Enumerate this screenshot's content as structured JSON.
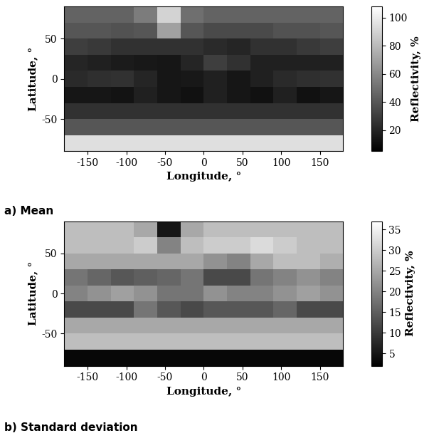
{
  "chart_data": [
    {
      "type": "heatmap",
      "title": "a) Mean",
      "xlabel": "Longitude, °",
      "ylabel": "Latitude, °",
      "xlim": [
        -180,
        180
      ],
      "ylim": [
        -90,
        90
      ],
      "xticks": [
        -150,
        -100,
        -50,
        0,
        50,
        100,
        150
      ],
      "yticks": [
        -50,
        0,
        50
      ],
      "x_edges": [
        -180,
        -150,
        -120,
        -90,
        -60,
        -30,
        0,
        30,
        60,
        90,
        120,
        150,
        180
      ],
      "y_edges": [
        90,
        70,
        50,
        30,
        10,
        -10,
        -30,
        -50,
        -70,
        -90
      ],
      "cells": [
        [
          45,
          45,
          45,
          55,
          90,
          50,
          45,
          45,
          45,
          45,
          45,
          45
        ],
        [
          40,
          40,
          38,
          40,
          70,
          40,
          35,
          35,
          35,
          38,
          38,
          40
        ],
        [
          30,
          28,
          25,
          25,
          25,
          25,
          22,
          20,
          25,
          25,
          28,
          30
        ],
        [
          20,
          18,
          16,
          15,
          14,
          20,
          30,
          25,
          18,
          18,
          18,
          18
        ],
        [
          22,
          24,
          25,
          20,
          14,
          15,
          18,
          14,
          18,
          22,
          24,
          25
        ],
        [
          14,
          14,
          13,
          18,
          14,
          12,
          18,
          14,
          12,
          18,
          12,
          14
        ],
        [
          25,
          25,
          25,
          25,
          25,
          25,
          25,
          25,
          25,
          25,
          25,
          25
        ],
        [
          40,
          40,
          40,
          40,
          40,
          40,
          40,
          40,
          40,
          40,
          40,
          40
        ],
        [
          95,
          95,
          95,
          95,
          95,
          95,
          95,
          95,
          95,
          95,
          95,
          95
        ]
      ],
      "colorbar_label": "Reflectivity, %",
      "colorbar_range": [
        5,
        108
      ],
      "colorbar_ticks": [
        20,
        40,
        60,
        80,
        100
      ]
    },
    {
      "type": "heatmap",
      "title": "b) Standard deviation",
      "xlabel": "Longitude, °",
      "ylabel": "Latitude, °",
      "xlim": [
        -180,
        180
      ],
      "ylim": [
        -90,
        90
      ],
      "xticks": [
        -150,
        -100,
        -50,
        0,
        50,
        100,
        150
      ],
      "yticks": [
        -50,
        0,
        50
      ],
      "x_edges": [
        -180,
        -150,
        -120,
        -90,
        -60,
        -30,
        0,
        30,
        60,
        90,
        120,
        150,
        180
      ],
      "y_edges": [
        90,
        70,
        50,
        30,
        10,
        -10,
        -30,
        -50,
        -70,
        -90
      ],
      "cells": [
        [
          28,
          28,
          28,
          25,
          5,
          25,
          28,
          28,
          28,
          28,
          28,
          28
        ],
        [
          28,
          28,
          28,
          30,
          20,
          28,
          30,
          30,
          32,
          30,
          28,
          28
        ],
        [
          25,
          25,
          25,
          25,
          25,
          25,
          22,
          20,
          25,
          28,
          28,
          26
        ],
        [
          18,
          16,
          14,
          15,
          16,
          18,
          12,
          12,
          18,
          20,
          22,
          20
        ],
        [
          20,
          22,
          24,
          22,
          18,
          18,
          22,
          20,
          20,
          22,
          24,
          22
        ],
        [
          12,
          12,
          12,
          18,
          14,
          12,
          14,
          14,
          14,
          16,
          12,
          12
        ],
        [
          25,
          25,
          25,
          25,
          25,
          25,
          25,
          25,
          25,
          25,
          25,
          25
        ],
        [
          28,
          28,
          28,
          28,
          28,
          28,
          28,
          28,
          28,
          28,
          28,
          28
        ],
        [
          3,
          3,
          3,
          3,
          3,
          3,
          3,
          3,
          3,
          3,
          3,
          3
        ]
      ],
      "colorbar_label": "Reflectivity, %",
      "colorbar_range": [
        2,
        37
      ],
      "colorbar_ticks": [
        5,
        10,
        15,
        20,
        25,
        30,
        35
      ]
    }
  ]
}
